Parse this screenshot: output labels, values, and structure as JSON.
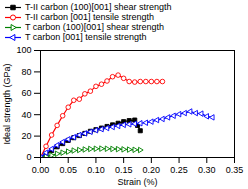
{
  "chart_data": {
    "type": "line",
    "title": "",
    "xlabel": "Strain (%)",
    "ylabel": "Ideal strength (GPa)",
    "xlim": [
      0,
      0.35
    ],
    "ylim": [
      0,
      100
    ],
    "xticks": [
      {
        "value": 0,
        "label": "0.00"
      },
      0.05,
      {
        "value": 0.1,
        "label": "0.10"
      },
      0.15,
      {
        "value": 0.2,
        "label": "0.20"
      },
      0.25,
      {
        "value": 0.3,
        "label": "0.30"
      },
      0.35
    ],
    "yticks": [
      0,
      20,
      40,
      60,
      80,
      100
    ],
    "grid": false,
    "legend": "upper left",
    "series": [
      {
        "name": "T-II carbon (100)[001] shear strength",
        "color": "#000000",
        "marker": "square",
        "x": [
          0.0,
          0.01,
          0.02,
          0.03,
          0.04,
          0.05,
          0.06,
          0.07,
          0.08,
          0.09,
          0.1,
          0.11,
          0.12,
          0.13,
          0.14,
          0.15,
          0.16,
          0.17,
          0.175,
          0.18
        ],
        "values": [
          0.0,
          3.0,
          6.5,
          10.0,
          13.0,
          16.0,
          18.5,
          20.5,
          22.5,
          24.5,
          26.0,
          27.5,
          29.0,
          30.5,
          32.0,
          33.5,
          34.5,
          35.0,
          30.0,
          25.0
        ]
      },
      {
        "name": "T-II carbon [001] tensile strength",
        "color": "#ff0000",
        "marker": "circle-open",
        "x": [
          0.0,
          0.01,
          0.02,
          0.03,
          0.04,
          0.05,
          0.06,
          0.07,
          0.08,
          0.09,
          0.1,
          0.11,
          0.12,
          0.13,
          0.14,
          0.15,
          0.16,
          0.17,
          0.18,
          0.19,
          0.2,
          0.21,
          0.22
        ],
        "values": [
          0.0,
          10.5,
          21.0,
          30.0,
          39.0,
          47.0,
          53.5,
          54.5,
          59.5,
          62.0,
          66.5,
          68.5,
          71.5,
          75.5,
          77.0,
          74.0,
          71.0,
          70.5,
          71.0,
          71.0,
          71.0,
          71.0,
          71.0
        ]
      },
      {
        "name": "T carbon  (100)[001] shear strength",
        "color": "#008000",
        "marker": "triangle-right-open",
        "x": [
          0.0,
          0.01,
          0.02,
          0.03,
          0.04,
          0.05,
          0.06,
          0.07,
          0.08,
          0.09,
          0.1,
          0.11,
          0.12,
          0.13,
          0.14,
          0.15,
          0.16,
          0.17,
          0.18
        ],
        "values": [
          0.0,
          1.0,
          2.0,
          3.5,
          4.5,
          5.5,
          6.5,
          7.0,
          7.5,
          8.0,
          8.2,
          8.3,
          8.2,
          8.0,
          7.8,
          7.6,
          7.4,
          7.2,
          7.0
        ]
      },
      {
        "name": "T carbon  [001] tensile strength",
        "color": "#0000ff",
        "marker": "triangle-left-open",
        "x": [
          0.0,
          0.01,
          0.02,
          0.03,
          0.04,
          0.05,
          0.06,
          0.07,
          0.08,
          0.09,
          0.1,
          0.11,
          0.12,
          0.13,
          0.14,
          0.15,
          0.16,
          0.17,
          0.18,
          0.19,
          0.2,
          0.21,
          0.22,
          0.23,
          0.24,
          0.25,
          0.26,
          0.27,
          0.28,
          0.29,
          0.3,
          0.31
        ],
        "values": [
          0.0,
          4.5,
          8.0,
          11.5,
          14.5,
          17.0,
          19.0,
          21.0,
          22.5,
          24.0,
          25.5,
          26.5,
          27.5,
          28.5,
          29.5,
          30.5,
          31.0,
          31.5,
          32.0,
          32.5,
          33.5,
          35.0,
          36.0,
          37.5,
          39.0,
          40.5,
          41.5,
          43.0,
          41.5,
          41.0,
          38.5,
          37.5
        ]
      }
    ]
  }
}
